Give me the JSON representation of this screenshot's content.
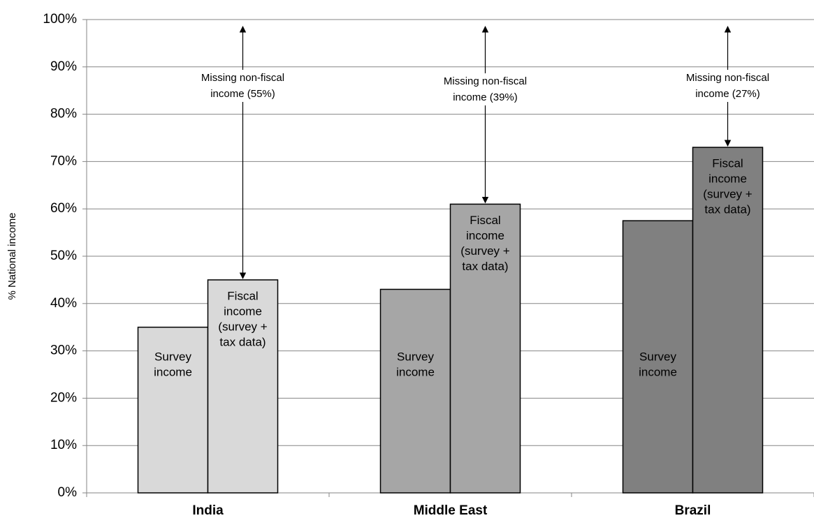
{
  "chart_data": {
    "type": "bar",
    "y_label": "% National income",
    "categories": [
      "India",
      "Middle East",
      "Brazil"
    ],
    "category_colors": [
      "#d9d9d9",
      "#a6a6a6",
      "#808080"
    ],
    "series": [
      {
        "label_lines": [
          "Survey",
          "income"
        ],
        "values": [
          35,
          43,
          57.5
        ]
      },
      {
        "label_lines": [
          "Fiscal",
          "income",
          "(survey +",
          "tax data)"
        ],
        "values": [
          45,
          61,
          73
        ]
      }
    ],
    "annotations": [
      {
        "lines": [
          "Missing non-fiscal",
          "income (55%)"
        ],
        "value": 55
      },
      {
        "lines": [
          "Missing non-fiscal",
          "income (39%)"
        ],
        "value": 39
      },
      {
        "lines": [
          "Missing non-fiscal",
          "income (27%)"
        ],
        "value": 27
      }
    ],
    "ylim": [
      0,
      100
    ],
    "yticks": [
      {
        "value": 0,
        "label": "0%"
      },
      {
        "value": 10,
        "label": "10%"
      },
      {
        "value": 20,
        "label": "20%"
      },
      {
        "value": 30,
        "label": "30%"
      },
      {
        "value": 40,
        "label": "40%"
      },
      {
        "value": 50,
        "label": "50%"
      },
      {
        "value": 60,
        "label": "60%"
      },
      {
        "value": 70,
        "label": "70%"
      },
      {
        "value": 80,
        "label": "80%"
      },
      {
        "value": 90,
        "label": "90%"
      },
      {
        "value": 100,
        "label": "100%"
      }
    ],
    "grid": true
  }
}
